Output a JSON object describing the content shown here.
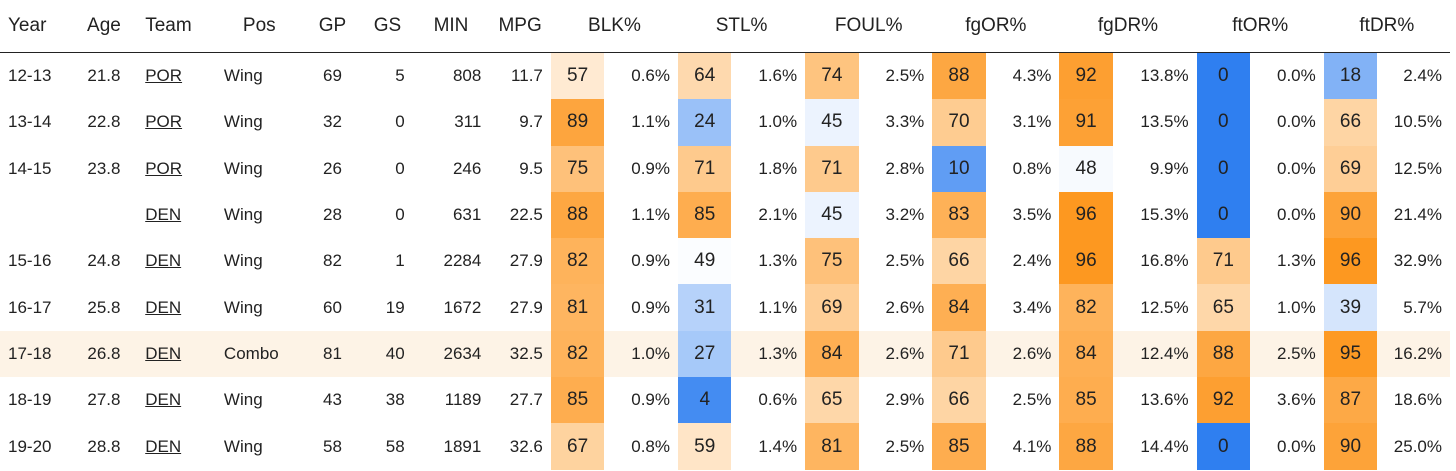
{
  "headers": {
    "year": "Year",
    "age": "Age",
    "team": "Team",
    "pos": "Pos",
    "gp": "GP",
    "gs": "GS",
    "min": "MIN",
    "mpg": "MPG",
    "blk": "BLK%",
    "stl": "STL%",
    "foul": "FOUL%",
    "fgor": "fgOR%",
    "fgdr": "fgDR%",
    "ftor": "ftOR%",
    "ftdr": "ftDR%"
  },
  "colors": {
    "blue_strong": "#3b8ff5",
    "blue_light": "#cfe3fb",
    "orange_strong": "#fd9a1a",
    "orange_light": "#fde7cb",
    "row_highlight": "#fdf3e6"
  },
  "rows": [
    {
      "year": "12-13",
      "age": "21.8",
      "team": "POR",
      "pos": "Wing",
      "gp": "69",
      "gs": "5",
      "min": "808",
      "mpg": "11.7",
      "highlight": false,
      "blk": {
        "pct": "57",
        "val": "0.6%"
      },
      "stl": {
        "pct": "64",
        "val": "1.6%"
      },
      "foul": {
        "pct": "74",
        "val": "2.5%"
      },
      "fgor": {
        "pct": "88",
        "val": "4.3%"
      },
      "fgdr": {
        "pct": "92",
        "val": "13.8%"
      },
      "ftor": {
        "pct": "0",
        "val": "0.0%"
      },
      "ftdr": {
        "pct": "18",
        "val": "2.4%"
      }
    },
    {
      "year": "13-14",
      "age": "22.8",
      "team": "POR",
      "pos": "Wing",
      "gp": "32",
      "gs": "0",
      "min": "311",
      "mpg": "9.7",
      "highlight": false,
      "blk": {
        "pct": "89",
        "val": "1.1%"
      },
      "stl": {
        "pct": "24",
        "val": "1.0%"
      },
      "foul": {
        "pct": "45",
        "val": "3.3%"
      },
      "fgor": {
        "pct": "70",
        "val": "3.1%"
      },
      "fgdr": {
        "pct": "91",
        "val": "13.5%"
      },
      "ftor": {
        "pct": "0",
        "val": "0.0%"
      },
      "ftdr": {
        "pct": "66",
        "val": "10.5%"
      }
    },
    {
      "year": "14-15",
      "age": "23.8",
      "team": "POR",
      "pos": "Wing",
      "gp": "26",
      "gs": "0",
      "min": "246",
      "mpg": "9.5",
      "highlight": false,
      "blk": {
        "pct": "75",
        "val": "0.9%"
      },
      "stl": {
        "pct": "71",
        "val": "1.8%"
      },
      "foul": {
        "pct": "71",
        "val": "2.8%"
      },
      "fgor": {
        "pct": "10",
        "val": "0.8%"
      },
      "fgdr": {
        "pct": "48",
        "val": "9.9%"
      },
      "ftor": {
        "pct": "0",
        "val": "0.0%"
      },
      "ftdr": {
        "pct": "69",
        "val": "12.5%"
      }
    },
    {
      "year": "",
      "age": "",
      "team": "DEN",
      "pos": "Wing",
      "gp": "28",
      "gs": "0",
      "min": "631",
      "mpg": "22.5",
      "highlight": false,
      "blk": {
        "pct": "88",
        "val": "1.1%"
      },
      "stl": {
        "pct": "85",
        "val": "2.1%"
      },
      "foul": {
        "pct": "45",
        "val": "3.2%"
      },
      "fgor": {
        "pct": "83",
        "val": "3.5%"
      },
      "fgdr": {
        "pct": "96",
        "val": "15.3%"
      },
      "ftor": {
        "pct": "0",
        "val": "0.0%"
      },
      "ftdr": {
        "pct": "90",
        "val": "21.4%"
      }
    },
    {
      "year": "15-16",
      "age": "24.8",
      "team": "DEN",
      "pos": "Wing",
      "gp": "82",
      "gs": "1",
      "min": "2284",
      "mpg": "27.9",
      "highlight": false,
      "blk": {
        "pct": "82",
        "val": "0.9%"
      },
      "stl": {
        "pct": "49",
        "val": "1.3%"
      },
      "foul": {
        "pct": "75",
        "val": "2.5%"
      },
      "fgor": {
        "pct": "66",
        "val": "2.4%"
      },
      "fgdr": {
        "pct": "96",
        "val": "16.8%"
      },
      "ftor": {
        "pct": "71",
        "val": "1.3%"
      },
      "ftdr": {
        "pct": "96",
        "val": "32.9%"
      }
    },
    {
      "year": "16-17",
      "age": "25.8",
      "team": "DEN",
      "pos": "Wing",
      "gp": "60",
      "gs": "19",
      "min": "1672",
      "mpg": "27.9",
      "highlight": false,
      "blk": {
        "pct": "81",
        "val": "0.9%"
      },
      "stl": {
        "pct": "31",
        "val": "1.1%"
      },
      "foul": {
        "pct": "69",
        "val": "2.6%"
      },
      "fgor": {
        "pct": "84",
        "val": "3.4%"
      },
      "fgdr": {
        "pct": "82",
        "val": "12.5%"
      },
      "ftor": {
        "pct": "65",
        "val": "1.0%"
      },
      "ftdr": {
        "pct": "39",
        "val": "5.7%"
      }
    },
    {
      "year": "17-18",
      "age": "26.8",
      "team": "DEN",
      "pos": "Combo",
      "gp": "81",
      "gs": "40",
      "min": "2634",
      "mpg": "32.5",
      "highlight": true,
      "blk": {
        "pct": "82",
        "val": "1.0%"
      },
      "stl": {
        "pct": "27",
        "val": "1.3%"
      },
      "foul": {
        "pct": "84",
        "val": "2.6%"
      },
      "fgor": {
        "pct": "71",
        "val": "2.6%"
      },
      "fgdr": {
        "pct": "84",
        "val": "12.4%"
      },
      "ftor": {
        "pct": "88",
        "val": "2.5%"
      },
      "ftdr": {
        "pct": "95",
        "val": "16.2%"
      }
    },
    {
      "year": "18-19",
      "age": "27.8",
      "team": "DEN",
      "pos": "Wing",
      "gp": "43",
      "gs": "38",
      "min": "1189",
      "mpg": "27.7",
      "highlight": false,
      "blk": {
        "pct": "85",
        "val": "0.9%"
      },
      "stl": {
        "pct": "4",
        "val": "0.6%"
      },
      "foul": {
        "pct": "65",
        "val": "2.9%"
      },
      "fgor": {
        "pct": "66",
        "val": "2.5%"
      },
      "fgdr": {
        "pct": "85",
        "val": "13.6%"
      },
      "ftor": {
        "pct": "92",
        "val": "3.6%"
      },
      "ftdr": {
        "pct": "87",
        "val": "18.6%"
      }
    },
    {
      "year": "19-20",
      "age": "28.8",
      "team": "DEN",
      "pos": "Wing",
      "gp": "58",
      "gs": "58",
      "min": "1891",
      "mpg": "32.6",
      "highlight": false,
      "blk": {
        "pct": "67",
        "val": "0.8%"
      },
      "stl": {
        "pct": "59",
        "val": "1.4%"
      },
      "foul": {
        "pct": "81",
        "val": "2.5%"
      },
      "fgor": {
        "pct": "85",
        "val": "4.1%"
      },
      "fgdr": {
        "pct": "88",
        "val": "14.4%"
      },
      "ftor": {
        "pct": "0",
        "val": "0.0%"
      },
      "ftdr": {
        "pct": "90",
        "val": "25.0%"
      }
    }
  ]
}
